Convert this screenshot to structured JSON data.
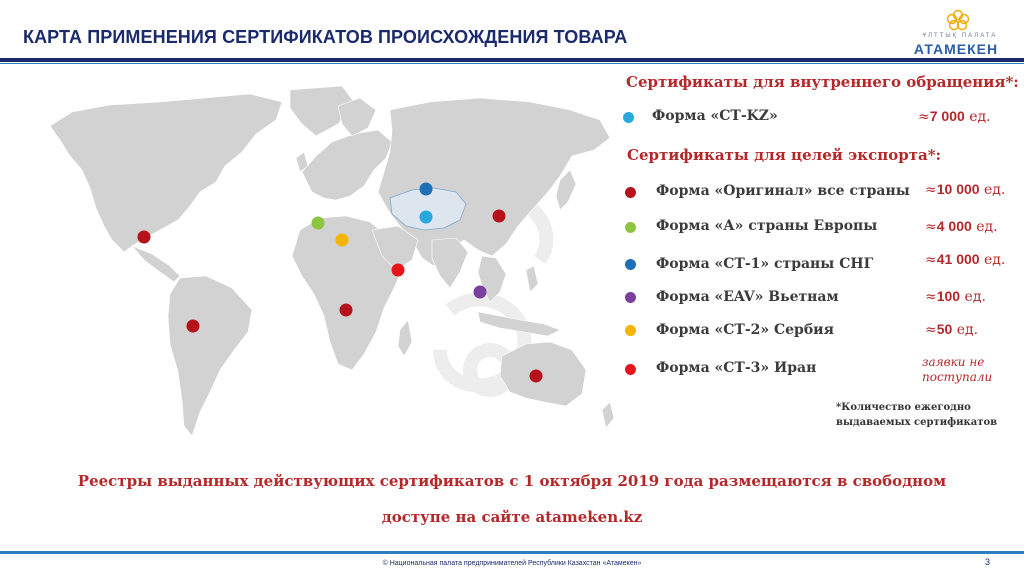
{
  "header": {
    "title": "КАРТА ПРИМЕНЕНИЯ СЕРТИФИКАТОВ ПРОИСХОЖДЕНИЯ ТОВАРА",
    "logo_top": "ҰЛТТЫҚ ПАЛАТА",
    "logo_name": "АТАМЕКЕН"
  },
  "domestic": {
    "heading": "Сертификаты для внутреннего обращения*:",
    "items": [
      {
        "label": "Форма «СТ-KZ»",
        "approx": "≈",
        "value": "7 000",
        "unit": " ед.",
        "color": "#29a8e0"
      }
    ]
  },
  "export": {
    "heading": "Сертификаты для целей экспорта*:",
    "items": [
      {
        "label": "Форма «Оригинал» все страны",
        "approx": "≈",
        "value": "10 000",
        "unit": " ед.",
        "color": "#b5121b"
      },
      {
        "label": "Форма «А» страны Европы",
        "approx": "≈",
        "value": "4 000",
        "unit": " ед.",
        "color": "#8cc63f"
      },
      {
        "label": "Форма «СТ-1» страны СНГ",
        "approx": "≈",
        "value": "41 000",
        "unit": " ед.",
        "color": "#1f6fb7"
      },
      {
        "label": "Форма «EAV» Вьетнам",
        "approx": "≈",
        "value": "100",
        "unit": " ед.",
        "color": "#7b3fa0"
      },
      {
        "label": "Форма «СТ-2» Сербия",
        "approx": "≈",
        "value": "50",
        "unit": " ед.",
        "color": "#f5b400"
      },
      {
        "label": "Форма «СТ-3» Иран",
        "note_line1": "заявки не",
        "note_line2": "поступали",
        "color": "#e8141b"
      }
    ]
  },
  "footnote": {
    "line1": "*Количество ежегодно",
    "line2": "выдаваемых сертификатов"
  },
  "bottom": {
    "line1": "Реестры выданных действующих сертификатов с 1 октября 2019 года размещаются в свободном",
    "line2": "доступе на сайте atameken.kz"
  },
  "footer": {
    "text": "© Национальная палата предпринимателей Республики Казахстан «Атамекен»",
    "page": "3"
  },
  "map": {
    "land_color": "#d2d2d2",
    "kz_color": "#dde6ef"
  }
}
